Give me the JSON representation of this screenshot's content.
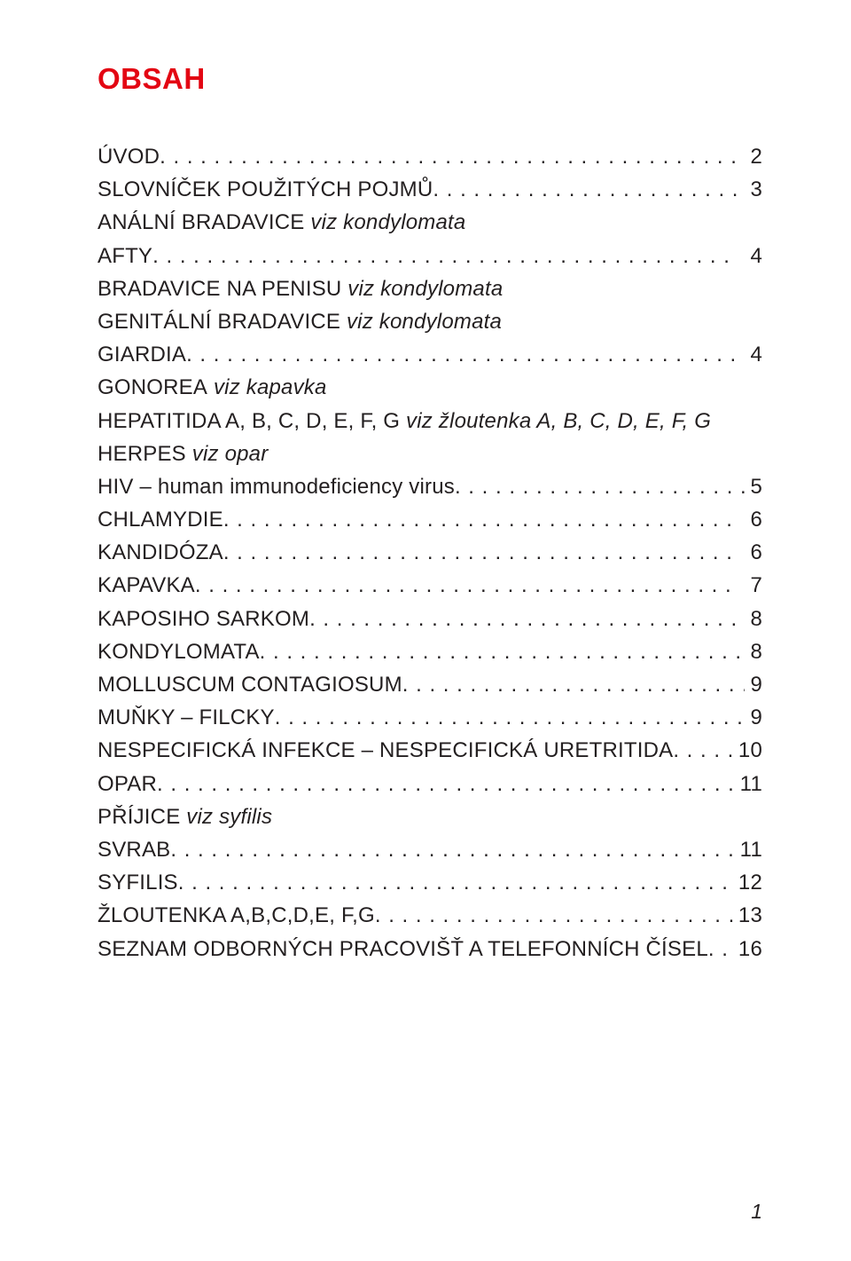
{
  "colors": {
    "title": "#e30613",
    "text": "#231f20",
    "background": "#ffffff"
  },
  "title": "OBSAH",
  "footer_page_number": "1",
  "toc": [
    {
      "text_strong": "ÚVOD",
      "text_italic": "",
      "ref": "2",
      "has_ref": true
    },
    {
      "text_strong": "SLOVNÍČEK POUŽITÝCH POJMŮ",
      "text_italic": "",
      "ref": "3",
      "has_ref": true
    },
    {
      "text_strong": "ANÁLNÍ BRADAVICE",
      "text_italic": " viz kondylomata",
      "ref": "",
      "has_ref": false
    },
    {
      "text_strong": "AFTY",
      "text_italic": "",
      "ref": "4",
      "has_ref": true
    },
    {
      "text_strong": "BRADAVICE NA PENISU",
      "text_italic": " viz kondylomata",
      "ref": "",
      "has_ref": false
    },
    {
      "text_strong": "GENITÁLNÍ BRADAVICE",
      "text_italic": " viz kondylomata",
      "ref": "",
      "has_ref": false
    },
    {
      "text_strong": "GIARDIA",
      "text_italic": "",
      "ref": "4",
      "has_ref": true
    },
    {
      "text_strong": "GONOREA",
      "text_italic": " viz kapavka",
      "ref": "",
      "has_ref": false
    },
    {
      "text_strong": "HEPATITIDA A, B, C, D, E, F, G",
      "text_italic": " viz žloutenka A, B, C, D, E, F, G",
      "ref": "",
      "has_ref": false
    },
    {
      "text_strong": "HERPES",
      "text_italic": " viz opar",
      "ref": "",
      "has_ref": false
    },
    {
      "text_strong": "HIV – human immunodeficiency virus",
      "text_italic": "",
      "ref": "5",
      "has_ref": true
    },
    {
      "text_strong": "CHLAMYDIE",
      "text_italic": "",
      "ref": "6",
      "has_ref": true
    },
    {
      "text_strong": "KANDIDÓZA",
      "text_italic": "",
      "ref": "6",
      "has_ref": true
    },
    {
      "text_strong": "KAPAVKA",
      "text_italic": "",
      "ref": "7",
      "has_ref": true
    },
    {
      "text_strong": "KAPOSIHO SARKOM",
      "text_italic": "",
      "ref": "8",
      "has_ref": true
    },
    {
      "text_strong": "KONDYLOMATA",
      "text_italic": "",
      "ref": "8",
      "has_ref": true
    },
    {
      "text_strong": "MOLLUSCUM CONTAGIOSUM",
      "text_italic": "",
      "ref": "9",
      "has_ref": true
    },
    {
      "text_strong": "MUŇKY – FILCKY",
      "text_italic": "",
      "ref": "9",
      "has_ref": true
    },
    {
      "text_strong": "NESPECIFICKÁ INFEKCE – NESPECIFICKÁ URETRITIDA",
      "text_italic": "",
      "ref": "10",
      "has_ref": true
    },
    {
      "text_strong": "OPAR",
      "text_italic": "",
      "ref": "11",
      "has_ref": true
    },
    {
      "text_strong": "PŘÍJICE",
      "text_italic": " viz syfilis",
      "ref": "",
      "has_ref": false
    },
    {
      "text_strong": "SVRAB",
      "text_italic": "",
      "ref": "11",
      "has_ref": true
    },
    {
      "text_strong": "SYFILIS",
      "text_italic": "",
      "ref": "12",
      "has_ref": true
    },
    {
      "text_strong": "ŽLOUTENKA A,B,C,D,E, F,G",
      "text_italic": "",
      "ref": "13",
      "has_ref": true
    },
    {
      "text_strong": "SEZNAM ODBORNÝCH PRACOVIŠŤ A TELEFONNÍCH ČÍSEL",
      "text_italic": "",
      "ref": "16",
      "has_ref": true
    }
  ]
}
